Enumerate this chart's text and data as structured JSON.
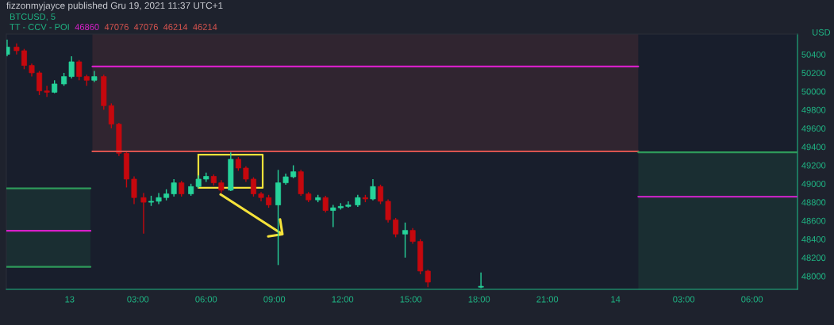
{
  "chart_data": {
    "type": "candlestick",
    "title": "fizzonmyjayce published Gru 19, 2021 11:37 UTC+1",
    "ylabel": "USD",
    "annotations": [
      "BTCUSD, 5",
      "TT - CCV - POI",
      "46860",
      "47076",
      "47076",
      "46214",
      "46214"
    ],
    "x": [
      "2021-12-12T21:15",
      "2021-12-12T21:40",
      "2021-12-12T22:00",
      "2021-12-12T22:20",
      "2021-12-12T22:40",
      "2021-12-12T23:00",
      "2021-12-12T23:20",
      "2021-12-12T23:45",
      "2021-12-13T00:05",
      "2021-12-13T00:25",
      "2021-12-13T00:45",
      "2021-12-13T01:05",
      "2021-12-13T01:30",
      "2021-12-13T01:50",
      "2021-12-13T02:10",
      "2021-12-13T02:30",
      "2021-12-13T02:50",
      "2021-12-13T03:15",
      "2021-12-13T03:35",
      "2021-12-13T03:55",
      "2021-12-13T04:15",
      "2021-12-13T04:35",
      "2021-12-13T04:55",
      "2021-12-13T05:20",
      "2021-12-13T05:40",
      "2021-12-13T06:00",
      "2021-12-13T06:20",
      "2021-12-13T06:40",
      "2021-12-13T07:05",
      "2021-12-13T07:25",
      "2021-12-13T07:45",
      "2021-12-13T08:05",
      "2021-12-13T08:25",
      "2021-12-13T08:45",
      "2021-12-13T09:10",
      "2021-12-13T09:30",
      "2021-12-13T09:50",
      "2021-12-13T10:10",
      "2021-12-13T10:30",
      "2021-12-13T10:55",
      "2021-12-13T11:15",
      "2021-12-13T11:35",
      "2021-12-13T11:55",
      "2021-12-13T12:15",
      "2021-12-13T12:40",
      "2021-12-13T13:00",
      "2021-12-13T13:20",
      "2021-12-13T13:40",
      "2021-12-13T14:00",
      "2021-12-13T14:20",
      "2021-12-13T14:45",
      "2021-12-13T15:05",
      "2021-12-13T15:25",
      "2021-12-13T15:45",
      "2021-12-13T18:05"
    ],
    "ohlc": [
      [
        50400,
        50560,
        50380,
        50480
      ],
      [
        50480,
        50520,
        50400,
        50440
      ],
      [
        50440,
        50460,
        50240,
        50280
      ],
      [
        50280,
        50300,
        50160,
        50200
      ],
      [
        50200,
        50220,
        49960,
        50005
      ],
      [
        50005,
        50060,
        49940,
        49990
      ],
      [
        49990,
        50120,
        49980,
        50080
      ],
      [
        50080,
        50200,
        50060,
        50160
      ],
      [
        50160,
        50380,
        50140,
        50320
      ],
      [
        50320,
        50340,
        50120,
        50160
      ],
      [
        50160,
        50180,
        50060,
        50120
      ],
      [
        50120,
        50220,
        50100,
        50160
      ],
      [
        50160,
        50180,
        49800,
        49845
      ],
      [
        49845,
        49870,
        49600,
        49645
      ],
      [
        49645,
        49660,
        49300,
        49330
      ],
      [
        49330,
        49350,
        48960,
        49050
      ],
      [
        49050,
        49080,
        48780,
        48850
      ],
      [
        48850,
        48900,
        48460,
        48800
      ],
      [
        48800,
        48870,
        48760,
        48810
      ],
      [
        48810,
        48900,
        48780,
        48850
      ],
      [
        48850,
        48940,
        48820,
        48890
      ],
      [
        48890,
        49050,
        48860,
        49010
      ],
      [
        49010,
        49030,
        48860,
        48890
      ],
      [
        48890,
        49000,
        48870,
        48970
      ],
      [
        48970,
        49090,
        48950,
        49050
      ],
      [
        49050,
        49120,
        49020,
        49080
      ],
      [
        49080,
        49100,
        48980,
        49010
      ],
      [
        49010,
        49040,
        48900,
        48930
      ],
      [
        48930,
        49340,
        48920,
        49265
      ],
      [
        49265,
        49290,
        49140,
        49170
      ],
      [
        49170,
        49190,
        49020,
        49050
      ],
      [
        49050,
        49070,
        48860,
        48890
      ],
      [
        48890,
        48910,
        48810,
        48850
      ],
      [
        48850,
        48880,
        48740,
        48770
      ],
      [
        48770,
        49150,
        48120,
        49010
      ],
      [
        49010,
        49110,
        48990,
        49075
      ],
      [
        49075,
        49200,
        49060,
        49130
      ],
      [
        49130,
        49150,
        48870,
        48890
      ],
      [
        48890,
        48910,
        48800,
        48825
      ],
      [
        48825,
        48880,
        48800,
        48850
      ],
      [
        48850,
        48870,
        48690,
        48710
      ],
      [
        48710,
        48770,
        48530,
        48740
      ],
      [
        48740,
        48790,
        48720,
        48755
      ],
      [
        48755,
        48810,
        48740,
        48770
      ],
      [
        48770,
        48880,
        48750,
        48850
      ],
      [
        48850,
        48880,
        48800,
        48835
      ],
      [
        48835,
        49050,
        48820,
        48970
      ],
      [
        48970,
        48990,
        48780,
        48810
      ],
      [
        48810,
        48830,
        48580,
        48610
      ],
      [
        48610,
        48630,
        48420,
        48455
      ],
      [
        48455,
        48580,
        48200,
        48495
      ],
      [
        48495,
        48520,
        48350,
        48375
      ],
      [
        48375,
        48400,
        48020,
        48055
      ],
      [
        48055,
        48070,
        47880,
        47935
      ],
      [
        47880,
        48040,
        47870,
        47890
      ]
    ],
    "colors": [
      "#26d39a",
      "#c5080e",
      "#c5080e",
      "#c5080e",
      "#c5080e",
      "#c5080e",
      "#26d39a",
      "#26d39a",
      "#26d39a",
      "#c5080e",
      "#c5080e",
      "#26d39a",
      "#c5080e",
      "#c5080e",
      "#c5080e",
      "#c5080e",
      "#c5080e",
      "#c5080e",
      "#26d39a",
      "#26d39a",
      "#26d39a",
      "#26d39a",
      "#c5080e",
      "#26d39a",
      "#26d39a",
      "#26d39a",
      "#c5080e",
      "#c5080e",
      "#26d39a",
      "#c5080e",
      "#c5080e",
      "#c5080e",
      "#c5080e",
      "#c5080e",
      "#26d39a",
      "#26d39a",
      "#26d39a",
      "#c5080e",
      "#c5080e",
      "#26d39a",
      "#c5080e",
      "#26d39a",
      "#26d39a",
      "#26d39a",
      "#26d39a",
      "#c5080e",
      "#26d39a",
      "#c5080e",
      "#c5080e",
      "#c5080e",
      "#26d39a",
      "#c5080e",
      "#c5080e",
      "#c5080e",
      "#26d39a"
    ],
    "series": [
      {
        "type": "line",
        "x": [
          "2021-12-13T01:00",
          "2021-12-14T01:00"
        ],
        "values": [
          50270,
          50270
        ],
        "color": "#d61fc8"
      },
      {
        "type": "line",
        "x": [
          "2021-12-13T01:00",
          "2021-12-14T01:00"
        ],
        "values": [
          49350,
          49350
        ],
        "lower": [
          49350,
          49350
        ],
        "upper": [
          50620,
          50620
        ],
        "color": "#d9544f"
      },
      {
        "type": "line",
        "x": [
          "2021-12-12T21:13",
          "2021-12-13T00:55"
        ],
        "values": [
          48490,
          48490
        ],
        "color": "#d61fc8"
      },
      {
        "type": "line",
        "x": [
          "2021-12-12T21:13",
          "2021-12-13T00:55"
        ],
        "values": [
          48950,
          48950
        ],
        "lower": [
          48100,
          48100
        ],
        "upper": [
          48950,
          48950
        ],
        "color": "#2e9a5a"
      },
      {
        "type": "line",
        "x": [
          "2021-12-12T21:13",
          "2021-12-13T00:55"
        ],
        "values": [
          48100,
          48100
        ],
        "color": "#2e9a5a"
      },
      {
        "type": "line",
        "x": [
          "2021-12-14T01:00",
          "2021-12-14T08:00"
        ],
        "values": [
          48860,
          48860
        ],
        "color": "#c224c0"
      },
      {
        "type": "line",
        "x": [
          "2021-12-14T01:00",
          "2021-12-14T08:00"
        ],
        "values": [
          49340,
          49340
        ],
        "lower": [
          47857,
          47857
        ],
        "upper": [
          49340,
          49340
        ],
        "color": "#2e9a5a"
      }
    ],
    "xlim": [
      "2021-12-12T21:13",
      "2021-12-14T08:00"
    ],
    "ylim": [
      47857,
      50620
    ],
    "xticks": [
      {
        "value": "2021-12-13T00:00",
        "label": "13"
      },
      {
        "value": "2021-12-13T03:00",
        "label": "03:00"
      },
      {
        "value": "2021-12-13T06:00",
        "label": "06:00"
      },
      {
        "value": "2021-12-13T09:00",
        "label": "09:00"
      },
      {
        "value": "2021-12-13T12:00",
        "label": "12:00"
      },
      {
        "value": "2021-12-13T15:00",
        "label": "15:00"
      },
      {
        "value": "2021-12-13T18:00",
        "label": "18:00"
      },
      {
        "value": "2021-12-13T21:00",
        "label": "21:00"
      },
      {
        "value": "2021-12-14T00:00",
        "label": "14"
      },
      {
        "value": "2021-12-14T03:00",
        "label": "03:00"
      },
      {
        "value": "2021-12-14T06:00",
        "label": "06:00"
      }
    ],
    "yticks": [
      48000,
      48200,
      48400,
      48600,
      48800,
      49000,
      49200,
      49400,
      49600,
      49800,
      50000,
      50200,
      50400
    ],
    "grid": false,
    "legend": false
  }
}
